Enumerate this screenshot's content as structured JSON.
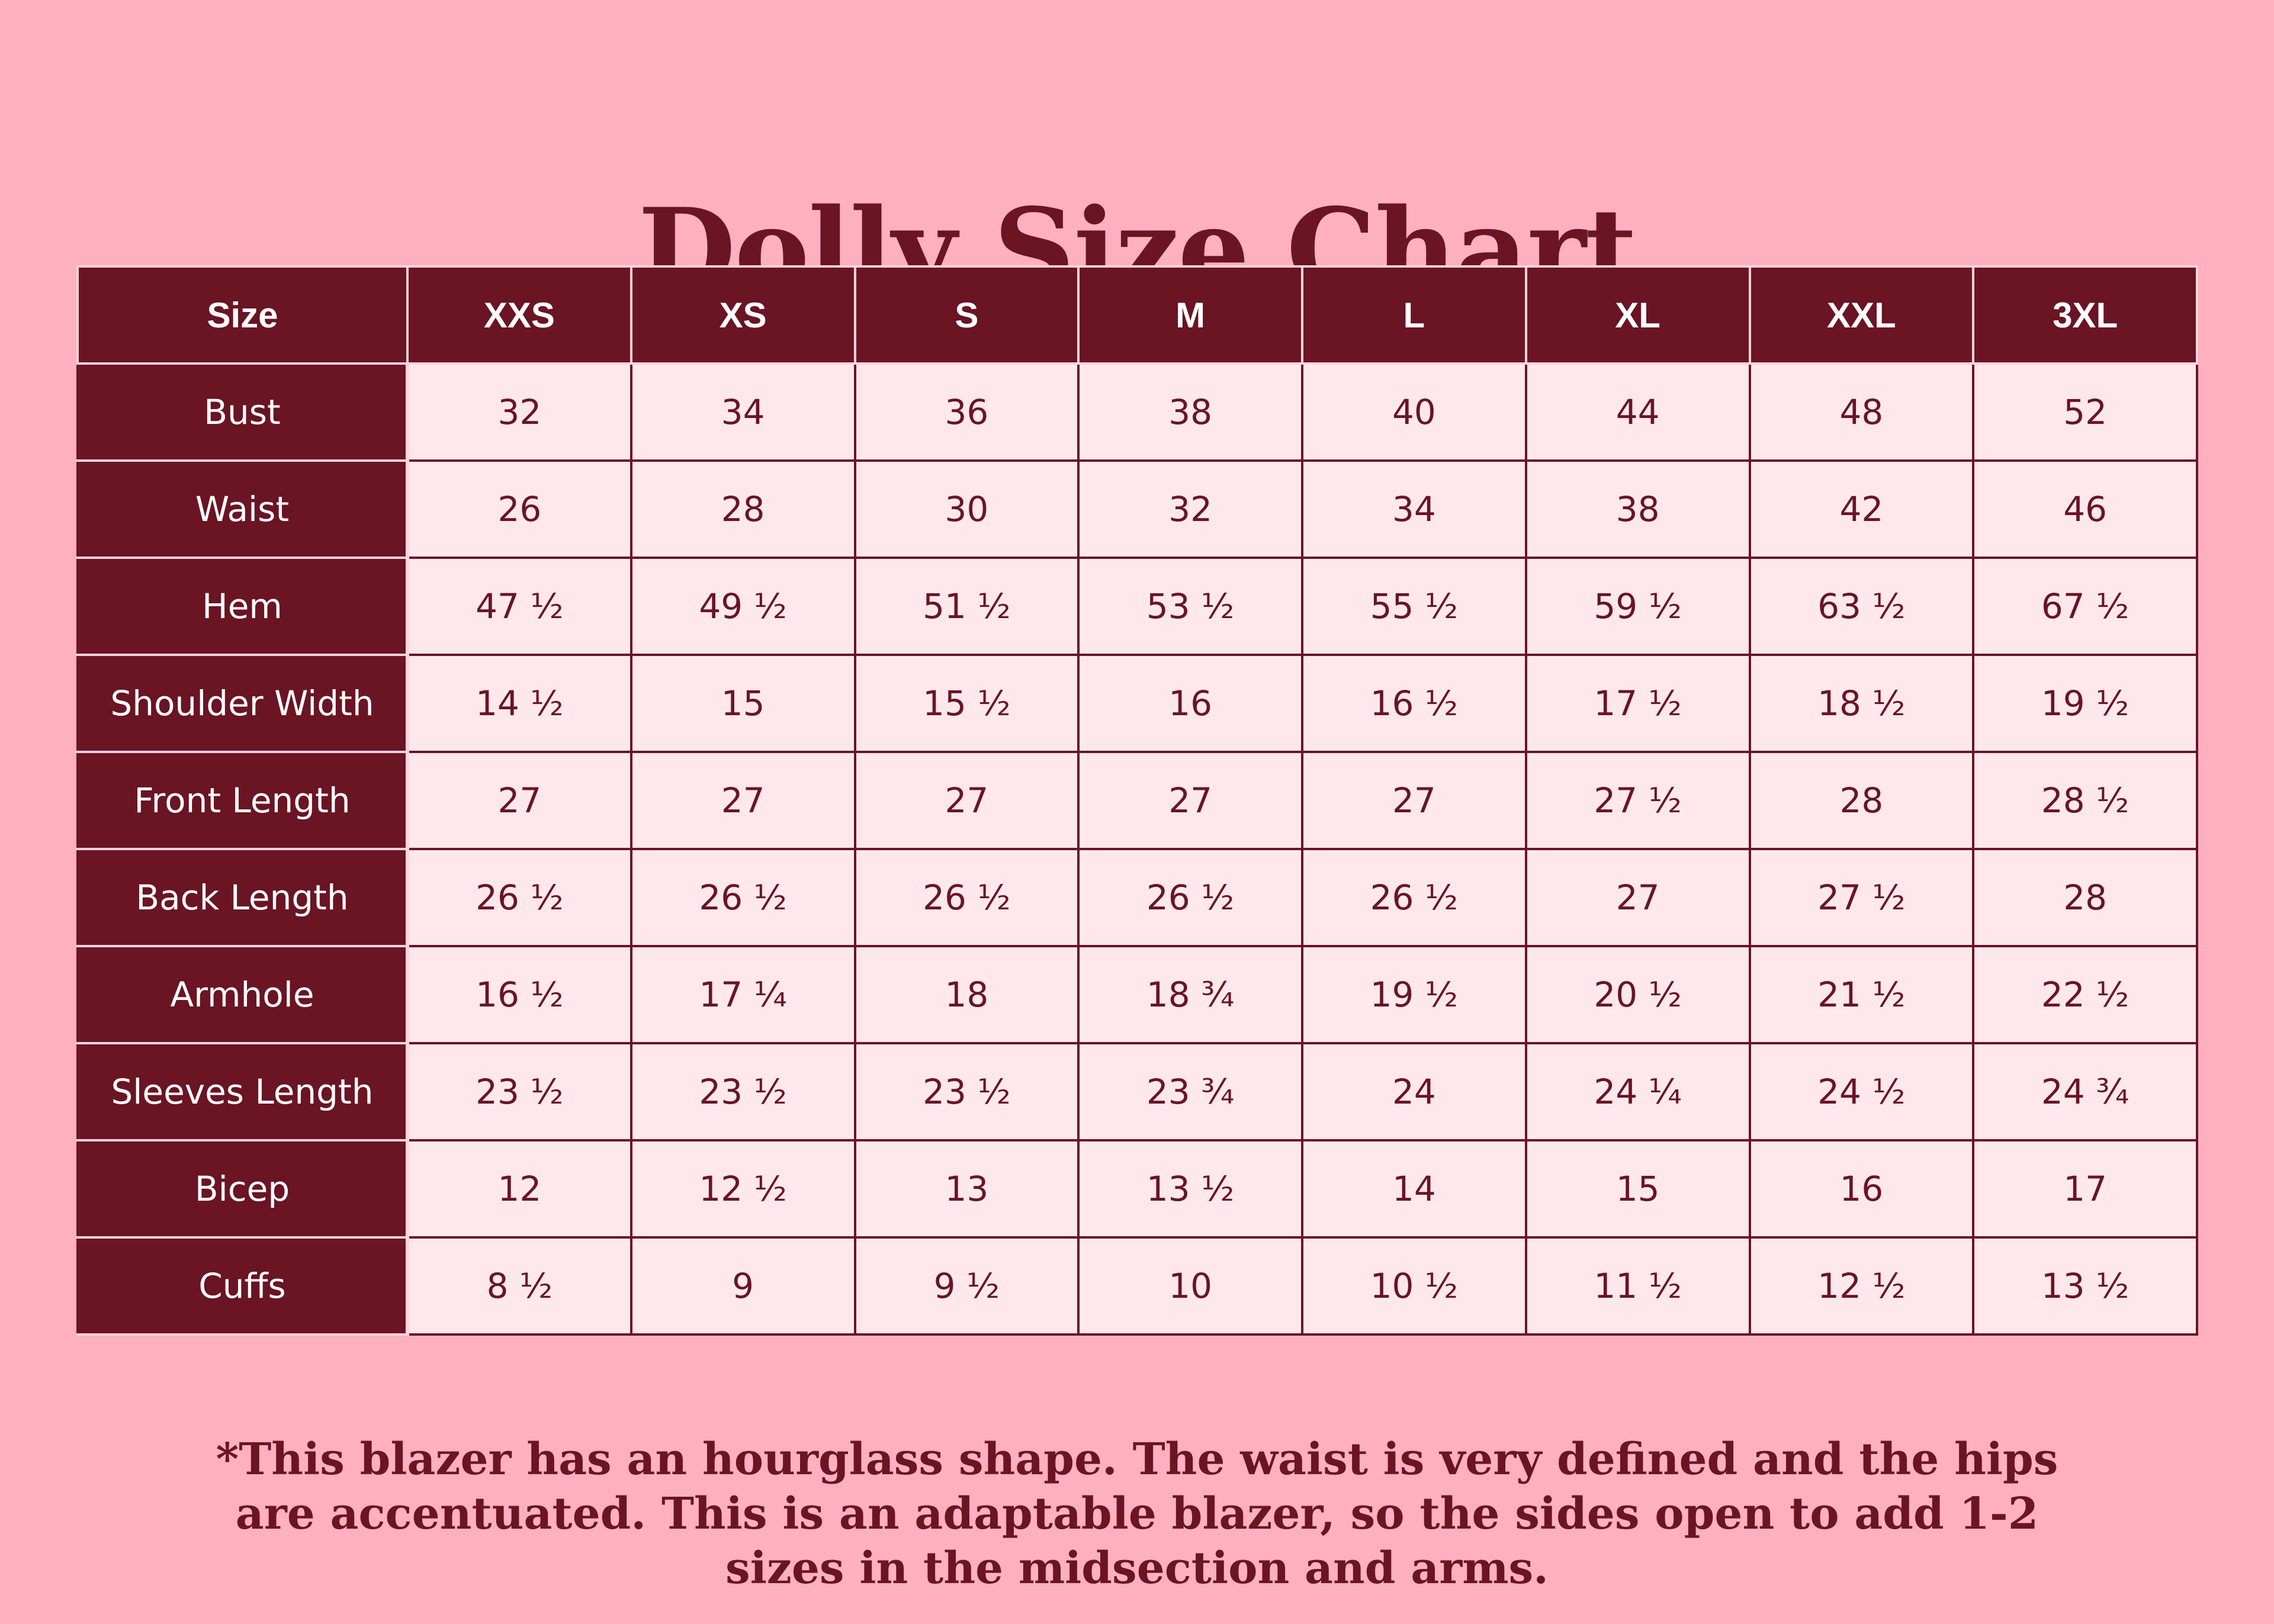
{
  "title": "Dolly Size Chart",
  "table": {
    "header": [
      "Size",
      "XXS",
      "XS",
      "S",
      "M",
      "L",
      "XL",
      "XXL",
      "3XL"
    ],
    "rows": [
      {
        "label": "Bust",
        "values": [
          "32",
          "34",
          "36",
          "38",
          "40",
          "44",
          "48",
          "52"
        ]
      },
      {
        "label": "Waist",
        "values": [
          "26",
          "28",
          "30",
          "32",
          "34",
          "38",
          "42",
          "46"
        ]
      },
      {
        "label": "Hem",
        "values": [
          "47 ½",
          "49 ½",
          "51 ½",
          "53 ½",
          "55 ½",
          "59 ½",
          "63 ½",
          "67 ½"
        ]
      },
      {
        "label": "Shoulder Width",
        "values": [
          "14 ½",
          "15",
          "15 ½",
          "16",
          "16 ½",
          "17 ½",
          "18 ½",
          "19 ½"
        ]
      },
      {
        "label": "Front Length",
        "values": [
          "27",
          "27",
          "27",
          "27",
          "27",
          "27 ½",
          "28",
          "28 ½"
        ]
      },
      {
        "label": "Back Length",
        "values": [
          "26 ½",
          "26 ½",
          "26 ½",
          "26 ½",
          "26 ½",
          "27",
          "27 ½",
          "28"
        ]
      },
      {
        "label": "Armhole",
        "values": [
          "16 ½",
          "17 ¼",
          "18",
          "18 ¾",
          "19 ½",
          "20 ½",
          "21 ½",
          "22 ½"
        ]
      },
      {
        "label": "Sleeves Length",
        "values": [
          "23 ½",
          "23 ½",
          "23 ½",
          "23 ¾",
          "24",
          "24 ¼",
          "24 ½",
          "24 ¾"
        ]
      },
      {
        "label": "Bicep",
        "values": [
          "12",
          "12 ½",
          "13",
          "13 ½",
          "14",
          "15",
          "16",
          "17"
        ]
      },
      {
        "label": "Cuffs",
        "values": [
          "8 ½",
          "9",
          "9 ½",
          "10",
          "10 ½",
          "11 ½",
          "12 ½",
          "13 ½"
        ]
      }
    ]
  },
  "note": "*This blazer has an hourglass shape. The waist is very defined and the hips are accentuated. This is an adaptable blazer, so the sides open to add 1-2 sizes in the midsection and arms.",
  "colors": {
    "background": "#ffb0c0",
    "accent": "#6a1424",
    "cell_background": "#ffe8ec"
  }
}
